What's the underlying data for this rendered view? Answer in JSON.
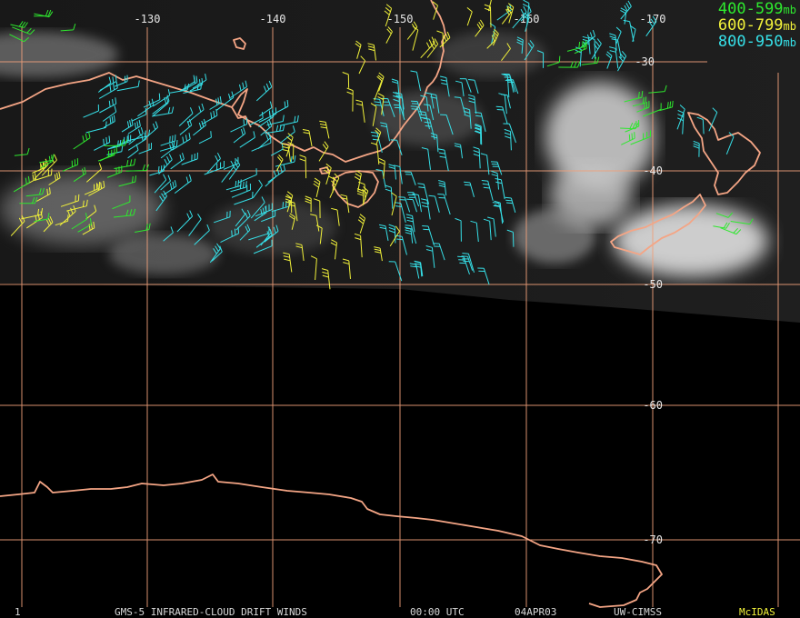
{
  "colors": {
    "grid": "#f0a07a",
    "coast": "#f4a585",
    "level_400_599": "#2ee82e",
    "level_600_799": "#f2f23a",
    "level_800_950": "#36e0e8"
  },
  "legend": {
    "items": [
      {
        "range": "400-599",
        "unit": "mb",
        "color": "#2ee82e"
      },
      {
        "range": "600-799",
        "unit": "mb",
        "color": "#f2f23a"
      },
      {
        "range": "800-950",
        "unit": "mb",
        "color": "#36e0e8"
      }
    ]
  },
  "axes": {
    "longitude_labels": [
      "-130",
      "-140",
      "-150",
      "-160",
      "-170"
    ],
    "latitude_labels": [
      "-30",
      "-40",
      "-50",
      "-60",
      "-70"
    ]
  },
  "footer": {
    "frame_number": "1",
    "product": "GMS-5 INFRARED-CLOUD DRIFT WINDS",
    "time": "00:00 UTC",
    "date": "04APR03",
    "source": "UW-CIMSS",
    "software": "McIDAS"
  }
}
